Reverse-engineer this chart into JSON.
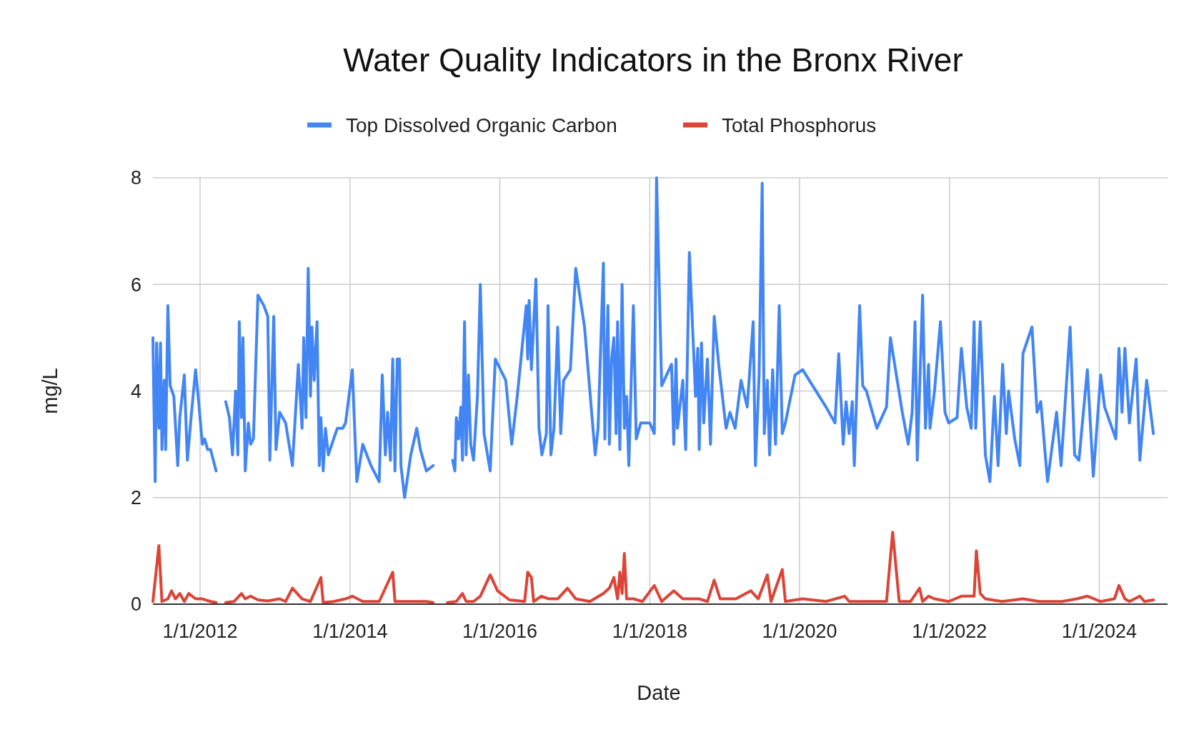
{
  "chart_data": {
    "type": "line",
    "title": "Water Quality Indicators in the Bronx River",
    "xlabel": "Date",
    "ylabel": "mg/L",
    "legend": "top",
    "grid": true,
    "xlim": [
      "2011-05-16",
      "2024-11-29"
    ],
    "xticks": [
      {
        "value": "2012-01-01",
        "label": "1/1/2012"
      },
      {
        "value": "2014-01-01",
        "label": "1/1/2014"
      },
      {
        "value": "2016-01-01",
        "label": "1/1/2016"
      },
      {
        "value": "2018-01-01",
        "label": "1/1/2018"
      },
      {
        "value": "2020-01-01",
        "label": "1/1/2020"
      },
      {
        "value": "2022-01-01",
        "label": "1/1/2022"
      },
      {
        "value": "2024-01-01",
        "label": "1/1/2024"
      }
    ],
    "ylim": [
      0,
      8
    ],
    "yticks": [
      0,
      2,
      4,
      6,
      8
    ],
    "series": [
      {
        "name": "Top Dissolved Organic Carbon",
        "color": "#4285f4",
        "x": [
          "2011-05-16",
          "2011-05-27",
          "2011-06-03",
          "2011-06-14",
          "2011-06-22",
          "2011-06-29",
          "2011-07-10",
          "2011-07-17",
          "2011-07-28",
          "2011-08-08",
          "2011-08-26",
          "2011-09-14",
          "2011-09-24",
          "2011-10-16",
          "2011-10-31",
          "2011-11-18",
          "2011-12-10",
          "2011-12-25",
          "2012-01-12",
          "2012-01-23",
          "2012-02-07",
          "2012-02-21",
          "2012-03-19",
          "2012-04-10",
          "2012-05-05",
          "2012-05-23",
          "2012-06-07",
          "2012-06-22",
          "2012-07-03",
          "2012-07-10",
          "2012-07-21",
          "2012-07-28",
          "2012-08-08",
          "2012-08-23",
          "2012-09-03",
          "2012-09-17",
          "2012-10-09",
          "2012-11-07",
          "2012-11-26",
          "2012-12-06",
          "2012-12-25",
          "2013-01-05",
          "2013-01-23",
          "2013-02-21",
          "2013-03-26",
          "2013-04-24",
          "2013-05-12",
          "2013-05-20",
          "2013-05-31",
          "2013-06-11",
          "2013-06-22",
          "2013-06-29",
          "2013-07-10",
          "2013-07-24",
          "2013-08-04",
          "2013-08-12",
          "2013-08-23",
          "2013-09-03",
          "2013-09-17",
          "2013-10-13",
          "2013-10-31",
          "2013-11-26",
          "2013-12-10",
          "2014-01-12",
          "2014-02-03",
          "2014-03-04",
          "2014-04-13",
          "2014-05-23",
          "2014-06-07",
          "2014-06-22",
          "2014-07-03",
          "2014-07-17",
          "2014-07-28",
          "2014-08-08",
          "2014-08-19",
          "2014-08-30",
          "2014-09-06",
          "2014-09-24",
          "2014-10-24",
          "2014-11-22",
          "2014-12-10",
          "2015-01-08",
          "2015-02-10",
          "2015-03-26",
          "2015-05-16",
          "2015-05-27",
          "2015-06-03",
          "2015-06-14",
          "2015-06-25",
          "2015-07-03",
          "2015-07-13",
          "2015-07-21",
          "2015-08-01",
          "2015-08-12",
          "2015-08-26",
          "2015-09-14",
          "2015-09-28",
          "2015-10-16",
          "2015-11-15",
          "2015-12-10",
          "2016-01-30",
          "2016-02-28",
          "2016-03-26",
          "2016-05-09",
          "2016-05-16",
          "2016-05-23",
          "2016-06-03",
          "2016-06-25",
          "2016-07-10",
          "2016-07-24",
          "2016-08-15",
          "2016-08-23",
          "2016-09-06",
          "2016-09-21",
          "2016-10-09",
          "2016-10-24",
          "2016-11-07",
          "2016-12-10",
          "2017-01-05",
          "2017-02-17",
          "2017-04-10",
          "2017-04-24",
          "2017-05-20",
          "2017-05-27",
          "2017-06-11",
          "2017-06-18",
          "2017-06-29",
          "2017-07-10",
          "2017-07-21",
          "2017-07-28",
          "2017-08-08",
          "2017-08-19",
          "2017-08-30",
          "2017-09-10",
          "2017-09-21",
          "2017-10-13",
          "2017-10-27",
          "2017-11-18",
          "2018-01-01",
          "2018-01-23",
          "2018-02-03",
          "2018-02-28",
          "2018-04-17",
          "2018-04-28",
          "2018-05-09",
          "2018-05-16",
          "2018-06-11",
          "2018-06-25",
          "2018-07-13",
          "2018-08-12",
          "2018-08-23",
          "2018-08-30",
          "2018-09-10",
          "2018-09-21",
          "2018-10-09",
          "2018-10-24",
          "2018-11-11",
          "2018-12-03",
          "2019-01-08",
          "2019-01-27",
          "2019-02-21",
          "2019-03-22",
          "2019-04-21",
          "2019-05-20",
          "2019-05-31",
          "2019-06-18",
          "2019-07-03",
          "2019-07-13",
          "2019-07-28",
          "2019-08-08",
          "2019-08-23",
          "2019-09-06",
          "2019-09-24",
          "2019-10-09",
          "2019-10-24",
          "2019-12-10",
          "2020-01-16",
          "2020-05-09",
          "2020-06-22",
          "2020-07-10",
          "2020-08-01",
          "2020-08-15",
          "2020-08-30",
          "2020-09-14",
          "2020-09-24",
          "2020-10-20",
          "2020-11-04",
          "2020-11-22",
          "2020-12-21",
          "2021-01-12",
          "2021-02-28",
          "2021-03-19",
          "2021-04-17",
          "2021-05-16",
          "2021-06-14",
          "2021-07-03",
          "2021-07-17",
          "2021-07-28",
          "2021-08-08",
          "2021-08-23",
          "2021-09-06",
          "2021-09-21",
          "2021-09-28",
          "2021-10-20",
          "2021-11-18",
          "2021-12-10",
          "2021-12-28",
          "2022-02-07",
          "2022-02-28",
          "2022-03-26",
          "2022-04-17",
          "2022-05-01",
          "2022-05-09",
          "2022-05-31",
          "2022-06-25",
          "2022-07-17",
          "2022-08-08",
          "2022-08-26",
          "2022-09-17",
          "2022-10-05",
          "2022-10-16",
          "2022-11-15",
          "2022-12-10",
          "2022-12-25",
          "2023-02-07",
          "2023-03-04",
          "2023-03-22",
          "2023-04-24",
          "2023-06-07",
          "2023-06-29",
          "2023-08-12",
          "2023-09-03",
          "2023-09-24",
          "2023-11-04",
          "2023-12-03",
          "2024-01-08",
          "2024-01-27",
          "2024-03-22",
          "2024-04-06",
          "2024-04-21",
          "2024-05-05",
          "2024-05-27",
          "2024-06-29",
          "2024-07-17",
          "2024-08-19",
          "2024-09-21"
        ],
        "values": [
          5.0,
          2.3,
          4.9,
          3.3,
          4.9,
          2.9,
          4.2,
          2.9,
          5.6,
          4.1,
          3.9,
          2.6,
          3.5,
          4.3,
          2.7,
          3.5,
          4.4,
          3.8,
          3.0,
          3.1,
          2.9,
          2.9,
          2.5,
          null,
          3.8,
          3.5,
          2.8,
          4.0,
          2.8,
          5.3,
          3.5,
          5.0,
          2.5,
          3.4,
          3.0,
          3.1,
          5.8,
          5.6,
          5.4,
          2.7,
          5.4,
          2.9,
          3.6,
          3.4,
          2.6,
          4.5,
          3.3,
          5.0,
          3.5,
          6.3,
          3.9,
          5.2,
          4.2,
          5.3,
          2.6,
          3.5,
          2.5,
          3.3,
          2.8,
          3.1,
          3.3,
          3.3,
          3.4,
          4.4,
          2.3,
          3.0,
          2.6,
          2.3,
          4.3,
          2.8,
          3.6,
          2.7,
          4.6,
          2.5,
          4.6,
          4.6,
          2.6,
          2.0,
          2.8,
          3.3,
          2.9,
          2.5,
          2.6,
          null,
          2.7,
          2.5,
          3.5,
          3.1,
          3.7,
          2.7,
          5.3,
          2.8,
          4.3,
          3.0,
          2.7,
          3.9,
          6.0,
          3.2,
          2.5,
          4.6,
          4.2,
          3.0,
          3.9,
          5.6,
          4.6,
          5.7,
          4.4,
          6.1,
          3.3,
          2.8,
          3.2,
          5.6,
          2.8,
          3.3,
          5.2,
          3.2,
          4.2,
          4.4,
          6.3,
          5.2,
          2.8,
          3.3,
          6.4,
          3.1,
          5.6,
          3.0,
          4.6,
          5.0,
          3.2,
          5.3,
          2.9,
          6.0,
          3.3,
          3.9,
          2.6,
          5.6,
          3.1,
          3.4,
          3.4,
          3.2,
          8.0,
          4.1,
          4.5,
          3.0,
          4.6,
          3.3,
          4.2,
          2.9,
          6.6,
          3.9,
          4.8,
          2.9,
          4.9,
          3.4,
          4.6,
          3.0,
          5.4,
          4.5,
          3.3,
          3.6,
          3.3,
          4.2,
          3.7,
          5.3,
          2.6,
          4.3,
          7.9,
          3.2,
          4.2,
          2.8,
          4.4,
          3.0,
          5.6,
          3.2,
          3.4,
          4.3,
          4.4,
          3.7,
          3.4,
          4.7,
          3.0,
          3.8,
          3.2,
          3.8,
          2.6,
          5.6,
          4.1,
          4.0,
          3.6,
          3.3,
          3.7,
          5.0,
          4.3,
          3.6,
          3.0,
          3.6,
          5.3,
          2.7,
          4.0,
          5.8,
          3.3,
          4.5,
          3.3,
          4.0,
          5.3,
          3.6,
          3.4,
          3.5,
          4.8,
          3.7,
          3.3,
          5.3,
          3.3,
          5.3,
          2.8,
          2.3,
          3.9,
          2.6,
          4.5,
          3.2,
          4.0,
          3.1,
          2.6,
          4.7,
          5.2,
          3.6,
          3.8,
          2.3,
          3.6,
          2.6,
          5.2,
          2.8,
          2.7,
          4.4,
          2.4,
          4.3,
          3.7,
          3.1,
          4.8,
          3.6,
          4.8,
          3.4,
          4.6,
          2.7,
          4.2,
          3.2
        ]
      },
      {
        "name": "Total Phosphorus",
        "color": "#db4437",
        "x": [
          "2011-05-16",
          "2011-06-14",
          "2011-06-29",
          "2011-07-28",
          "2011-08-15",
          "2011-09-03",
          "2011-09-24",
          "2011-10-16",
          "2011-11-07",
          "2011-12-10",
          "2012-01-12",
          "2012-02-21",
          "2012-03-19",
          "2012-04-10",
          "2012-05-05",
          "2012-06-14",
          "2012-07-21",
          "2012-08-08",
          "2012-09-03",
          "2012-10-09",
          "2012-11-26",
          "2013-01-23",
          "2013-02-21",
          "2013-03-26",
          "2013-05-12",
          "2013-06-22",
          "2013-08-12",
          "2013-08-23",
          "2013-10-13",
          "2013-12-10",
          "2014-01-12",
          "2014-03-04",
          "2014-05-23",
          "2014-07-28",
          "2014-08-08",
          "2014-10-24",
          "2015-01-08",
          "2015-02-10",
          "2015-03-15",
          "2015-04-21",
          "2015-06-03",
          "2015-07-03",
          "2015-07-21",
          "2015-08-26",
          "2015-09-28",
          "2015-11-15",
          "2015-12-21",
          "2016-02-17",
          "2016-05-01",
          "2016-05-16",
          "2016-06-03",
          "2016-06-14",
          "2016-07-21",
          "2016-08-26",
          "2016-10-09",
          "2016-11-26",
          "2017-01-05",
          "2017-03-15",
          "2017-05-20",
          "2017-06-18",
          "2017-07-10",
          "2017-07-28",
          "2017-08-08",
          "2017-08-19",
          "2017-08-30",
          "2017-09-10",
          "2017-10-13",
          "2017-11-26",
          "2018-01-23",
          "2018-02-28",
          "2018-04-28",
          "2018-06-11",
          "2018-08-30",
          "2018-10-09",
          "2018-11-11",
          "2018-12-10",
          "2019-02-25",
          "2019-05-09",
          "2019-06-14",
          "2019-07-28",
          "2019-08-15",
          "2019-10-09",
          "2019-10-24",
          "2020-01-16",
          "2020-05-09",
          "2020-08-08",
          "2020-08-30",
          "2020-12-21",
          "2021-02-28",
          "2021-03-30",
          "2021-05-01",
          "2021-06-25",
          "2021-08-08",
          "2021-08-23",
          "2021-09-21",
          "2021-10-20",
          "2021-12-28",
          "2022-02-28",
          "2022-05-01",
          "2022-05-12",
          "2022-05-31",
          "2022-06-25",
          "2022-09-14",
          "2022-12-25",
          "2023-03-15",
          "2023-07-03",
          "2023-09-14",
          "2023-11-04",
          "2024-01-08",
          "2024-03-15",
          "2024-04-06",
          "2024-05-05",
          "2024-05-27",
          "2024-07-17",
          "2024-08-08",
          "2024-09-21"
        ],
        "values": [
          0.05,
          1.1,
          0.05,
          0.1,
          0.25,
          0.1,
          0.2,
          0.05,
          0.2,
          0.1,
          0.1,
          0.05,
          0.03,
          null,
          0.03,
          0.05,
          0.2,
          0.1,
          0.15,
          0.08,
          0.06,
          0.1,
          0.05,
          0.3,
          0.1,
          0.05,
          0.5,
          0.03,
          0.05,
          0.1,
          0.15,
          0.05,
          0.05,
          0.6,
          0.05,
          0.05,
          0.05,
          0.03,
          null,
          0.03,
          0.05,
          0.2,
          0.05,
          0.05,
          0.15,
          0.55,
          0.25,
          0.08,
          0.05,
          0.6,
          0.5,
          0.05,
          0.15,
          0.1,
          0.1,
          0.3,
          0.1,
          0.05,
          0.2,
          0.3,
          0.5,
          0.1,
          0.6,
          0.2,
          0.95,
          0.1,
          0.1,
          0.05,
          0.35,
          0.05,
          0.25,
          0.1,
          0.1,
          0.05,
          0.45,
          0.1,
          0.1,
          0.25,
          0.1,
          0.55,
          0.05,
          0.65,
          0.05,
          0.1,
          0.05,
          0.15,
          0.05,
          0.05,
          0.05,
          1.35,
          0.05,
          0.05,
          0.3,
          0.05,
          0.15,
          0.1,
          0.05,
          0.15,
          0.15,
          1.0,
          0.2,
          0.1,
          0.05,
          0.1,
          0.05,
          0.05,
          0.1,
          0.15,
          0.05,
          0.1,
          0.35,
          0.1,
          0.05,
          0.15,
          0.05,
          0.08
        ]
      }
    ]
  }
}
